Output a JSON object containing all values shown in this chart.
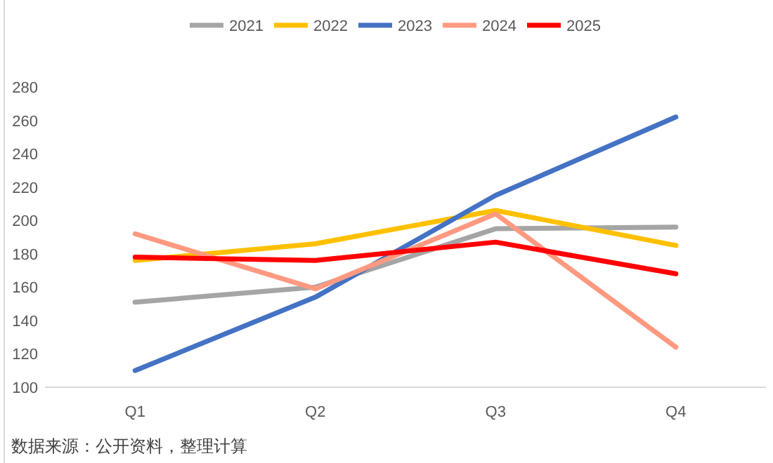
{
  "chart_data": {
    "type": "line",
    "categories": [
      "Q1",
      "Q2",
      "Q3",
      "Q4"
    ],
    "series": [
      {
        "name": "2021",
        "color": "#a5a5a5",
        "values": [
          151,
          160,
          195,
          196
        ]
      },
      {
        "name": "2022",
        "color": "#ffc000",
        "values": [
          176,
          186,
          206,
          185
        ]
      },
      {
        "name": "2023",
        "color": "#4472c4",
        "values": [
          110,
          154,
          215,
          262
        ]
      },
      {
        "name": "2024",
        "color": "#ff9980",
        "values": [
          192,
          159,
          204,
          124
        ]
      },
      {
        "name": "2025",
        "color": "#ff0000",
        "values": [
          178,
          176,
          187,
          168
        ]
      }
    ],
    "ylim": [
      100,
      280
    ],
    "yticks": [
      100,
      120,
      140,
      160,
      180,
      200,
      220,
      240,
      260,
      280
    ],
    "legend": "top",
    "annotations": [
      "数据来源：公开资料，整理计算"
    ]
  }
}
